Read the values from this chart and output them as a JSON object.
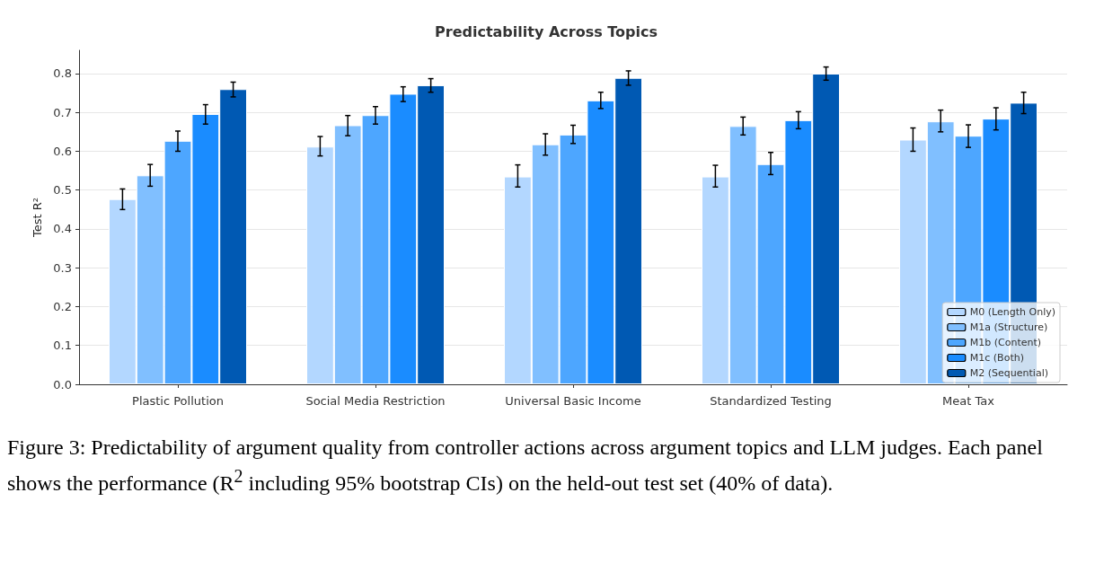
{
  "chart_data": {
    "type": "bar",
    "title": "Predictability Across Topics",
    "ylabel": "Test R²",
    "categories": [
      "Plastic Pollution",
      "Social Media Restriction",
      "Universal Basic Income",
      "Standardized Testing",
      "Meat Tax"
    ],
    "series": [
      {
        "name": "M0 (Length Only)",
        "color": "#b3d7ff",
        "values": [
          0.477,
          0.612,
          0.535,
          0.535,
          0.63
        ],
        "errors": [
          [
            0.45,
            0.503
          ],
          [
            0.588,
            0.638
          ],
          [
            0.508,
            0.565
          ],
          [
            0.508,
            0.564
          ],
          [
            0.6,
            0.66
          ]
        ]
      },
      {
        "name": "M1a (Structure)",
        "color": "#80bfff",
        "values": [
          0.538,
          0.667,
          0.618,
          0.665,
          0.677
        ],
        "errors": [
          [
            0.51,
            0.566
          ],
          [
            0.64,
            0.692
          ],
          [
            0.59,
            0.645
          ],
          [
            0.642,
            0.688
          ],
          [
            0.65,
            0.706
          ]
        ]
      },
      {
        "name": "M1b (Content)",
        "color": "#4da6ff",
        "values": [
          0.627,
          0.693,
          0.643,
          0.567,
          0.64
        ],
        "errors": [
          [
            0.6,
            0.652
          ],
          [
            0.67,
            0.715
          ],
          [
            0.62,
            0.667
          ],
          [
            0.54,
            0.597
          ],
          [
            0.61,
            0.668
          ]
        ]
      },
      {
        "name": "M1c (Both)",
        "color": "#1a8cff",
        "values": [
          0.696,
          0.748,
          0.731,
          0.68,
          0.684
        ],
        "errors": [
          [
            0.67,
            0.72
          ],
          [
            0.728,
            0.766
          ],
          [
            0.71,
            0.752
          ],
          [
            0.658,
            0.702
          ],
          [
            0.655,
            0.712
          ]
        ]
      },
      {
        "name": "M2 (Sequential)",
        "color": "#0059b3",
        "values": [
          0.76,
          0.77,
          0.789,
          0.8,
          0.725
        ],
        "errors": [
          [
            0.74,
            0.778
          ],
          [
            0.752,
            0.787
          ],
          [
            0.77,
            0.807
          ],
          [
            0.783,
            0.817
          ],
          [
            0.697,
            0.752
          ]
        ]
      }
    ],
    "ylim": [
      0,
      0.86
    ],
    "yticks": [
      {
        "value": 0,
        "label": "0.0"
      },
      {
        "value": 0.1,
        "label": "0.1"
      },
      {
        "value": 0.2,
        "label": "0.2"
      },
      {
        "value": 0.3,
        "label": "0.3"
      },
      {
        "value": 0.4,
        "label": "0.4"
      },
      {
        "value": 0.5,
        "label": "0.5"
      },
      {
        "value": 0.6,
        "label": "0.6"
      },
      {
        "value": 0.7,
        "label": "0.7"
      },
      {
        "value": 0.8,
        "label": "0.8"
      }
    ],
    "grid": "y",
    "legend": "bottom right",
    "annotations": [
      "Figure 3: Predictability of argument quality from controller actions across argument topics and LLM judges. Each panel shows the performance (R$^{2}$ including 95% bootstrap CIs) on the held-out test set (40% of data)."
    ]
  }
}
